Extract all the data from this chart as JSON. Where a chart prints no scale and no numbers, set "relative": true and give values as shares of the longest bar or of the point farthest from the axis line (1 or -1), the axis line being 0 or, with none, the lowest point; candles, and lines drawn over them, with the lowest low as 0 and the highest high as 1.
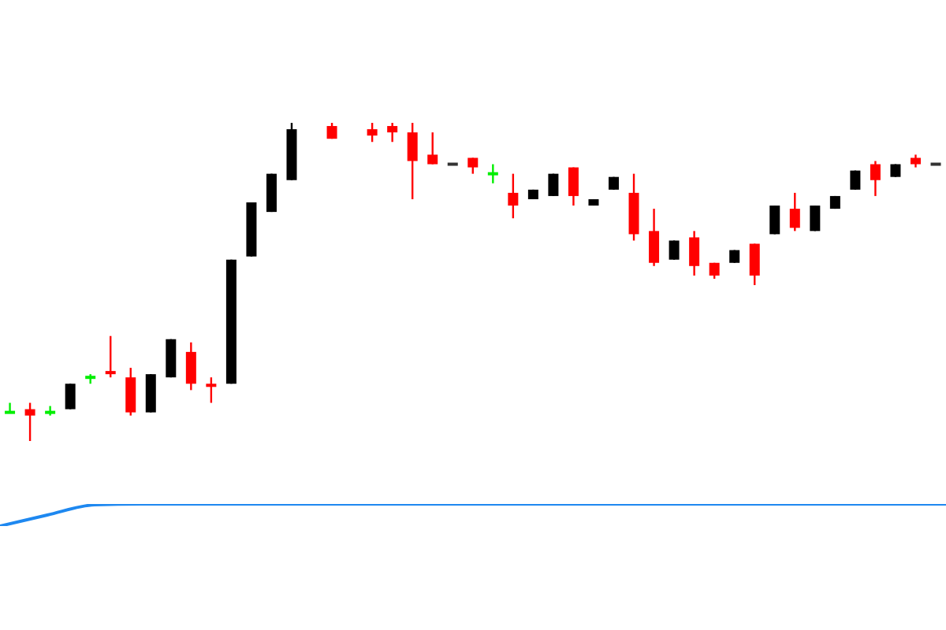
{
  "chart_data": [
    {
      "type": "candlestick",
      "relative": true,
      "categories": [
        null,
        null,
        null,
        null,
        null,
        null,
        null,
        null,
        null,
        null,
        null,
        null,
        null,
        null,
        null,
        null,
        null,
        null,
        null,
        null,
        null,
        null,
        null,
        null,
        null,
        null,
        null,
        null,
        null,
        null,
        null,
        null,
        null,
        null,
        null,
        null,
        null,
        null,
        null,
        null,
        null,
        null,
        null,
        null,
        null,
        null,
        null
      ],
      "ohlc": [
        [
          0.09,
          0.12,
          0.09,
          0.09
        ],
        [
          0.1,
          0.12,
          0,
          0.08
        ],
        [
          0.09,
          0.11,
          0.08,
          0.09
        ],
        [
          0.1,
          0.18,
          0.1,
          0.18
        ],
        [
          0.2,
          0.21,
          0.18,
          0.2
        ],
        [
          0.22,
          0.33,
          0.2,
          0.21
        ],
        [
          0.2,
          0.23,
          0.08,
          0.09
        ],
        [
          0.09,
          0.21,
          0.09,
          0.21
        ],
        [
          0.2,
          0.32,
          0.2,
          0.32
        ],
        [
          0.28,
          0.31,
          0.16,
          0.18
        ],
        [
          0.18,
          0.2,
          0.12,
          0.17
        ],
        [
          0.18,
          0.57,
          0.18,
          0.57
        ],
        [
          0.58,
          0.75,
          0.58,
          0.75
        ],
        [
          0.72,
          0.84,
          0.72,
          0.84
        ],
        [
          0.82,
          1.0,
          0.82,
          0.98
        ],
        null,
        [
          0.99,
          1.0,
          0.95,
          0.95
        ],
        null,
        [
          0.98,
          1.0,
          0.94,
          0.96
        ],
        [
          0.99,
          1.0,
          0.94,
          0.97
        ],
        [
          0.97,
          1.0,
          0.76,
          0.88
        ],
        [
          0.9,
          0.97,
          0.87,
          0.87
        ],
        [
          0.87,
          0.87,
          0.87,
          0.87
        ],
        [
          0.89,
          0.89,
          0.84,
          0.86
        ],
        [
          0.84,
          0.87,
          0.81,
          0.84
        ],
        [
          0.78,
          0.84,
          0.7,
          0.74
        ],
        [
          0.76,
          0.79,
          0.76,
          0.79
        ],
        [
          0.77,
          0.84,
          0.77,
          0.84
        ],
        [
          0.86,
          0.86,
          0.74,
          0.77
        ],
        [
          0.74,
          0.76,
          0.74,
          0.76
        ],
        [
          0.79,
          0.83,
          0.79,
          0.83
        ],
        [
          0.78,
          0.84,
          0.63,
          0.65
        ],
        [
          0.66,
          0.73,
          0.55,
          0.56
        ],
        [
          0.57,
          0.63,
          0.57,
          0.63
        ],
        [
          0.64,
          0.66,
          0.52,
          0.55
        ],
        [
          0.56,
          0.56,
          0.51,
          0.52
        ],
        [
          0.56,
          0.6,
          0.56,
          0.6
        ],
        [
          0.62,
          0.62,
          0.49,
          0.52
        ],
        [
          0.65,
          0.74,
          0.65,
          0.74
        ],
        [
          0.73,
          0.78,
          0.66,
          0.67
        ],
        [
          0.66,
          0.74,
          0.66,
          0.74
        ],
        [
          0.73,
          0.77,
          0.73,
          0.77
        ],
        [
          0.79,
          0.85,
          0.79,
          0.85
        ],
        [
          0.87,
          0.88,
          0.77,
          0.82
        ],
        [
          0.83,
          0.87,
          0.83,
          0.87
        ],
        [
          0.89,
          0.9,
          0.86,
          0.87
        ],
        [
          0.87,
          0.87,
          0.87,
          0.87
        ]
      ],
      "colors": [
        "#00ee00",
        "#ff0000",
        "#00ee00",
        "#000000",
        "#00ee00",
        "#ff0000",
        "#ff0000",
        "#000000",
        "#000000",
        "#ff0000",
        "#ff0000",
        "#000000",
        "#000000",
        "#000000",
        "#000000",
        null,
        "#ff0000",
        null,
        "#ff0000",
        "#ff0000",
        "#ff0000",
        "#ff0000",
        "#333333",
        "#ff0000",
        "#00ee00",
        "#ff0000",
        "#000000",
        "#000000",
        "#ff0000",
        "#000000",
        "#000000",
        "#ff0000",
        "#ff0000",
        "#000000",
        "#ff0000",
        "#ff0000",
        "#000000",
        "#ff0000",
        "#000000",
        "#ff0000",
        "#000000",
        "#000000",
        "#000000",
        "#ff0000",
        "#000000",
        "#ff0000",
        "#333333"
      ]
    },
    {
      "type": "line",
      "relative": true,
      "categories": [
        null,
        null,
        null,
        null,
        null,
        null,
        null,
        null,
        null,
        null,
        null,
        null,
        null,
        null,
        null,
        null,
        null,
        null,
        null,
        null,
        null
      ],
      "series": [
        {
          "color": "#1e88f0",
          "values": [
            0,
            0.5,
            0.96,
            1,
            1,
            1,
            1,
            1,
            1,
            1,
            1,
            1,
            1,
            1,
            1,
            1,
            1,
            1,
            1,
            1,
            1
          ]
        }
      ],
      "marker": "none",
      "line_style": "solid"
    }
  ]
}
